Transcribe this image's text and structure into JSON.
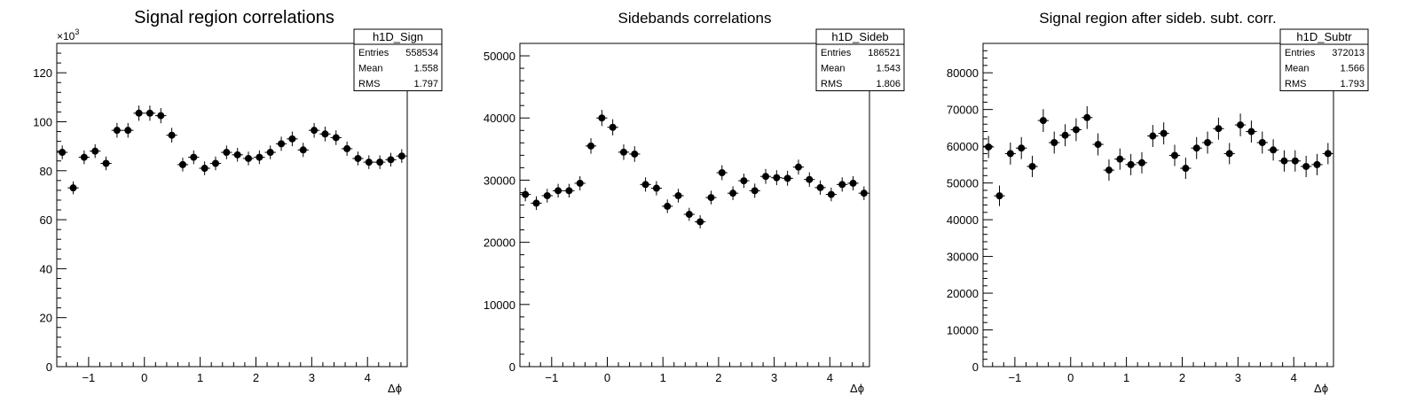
{
  "chart_data": [
    {
      "type": "scatter",
      "title": "Signal region correlations",
      "xlabel": "Δϕ",
      "ylabel": "",
      "xlim": [
        -1.5708,
        4.7124
      ],
      "ylim": [
        0,
        132
      ],
      "y_multiplier_label": "×10",
      "y_multiplier_exponent": "3",
      "x_ticks": [
        "−1",
        "0",
        "1",
        "2",
        "3",
        "4"
      ],
      "y_ticks": [
        "0",
        "20",
        "40",
        "60",
        "80",
        "100",
        "120"
      ],
      "stats_box": {
        "name": "h1D_Sign",
        "rows": [
          [
            "Entries",
            "558534"
          ],
          [
            "Mean",
            "1.558"
          ],
          [
            "RMS",
            "1.797"
          ]
        ]
      },
      "series": [
        {
          "values": [
            87.5,
            73,
            85.5,
            88,
            83,
            96.5,
            96.5,
            103.5,
            103.5,
            102.5,
            94.5,
            82.5,
            85.5,
            81,
            83,
            87.5,
            86.5,
            85,
            85.5,
            87.5,
            91,
            93,
            88.5,
            96.5,
            95,
            93.5,
            89,
            85,
            83.5,
            83.5,
            84.5,
            86
          ],
          "errors": [
            2.8,
            2.6,
            2.8,
            2.8,
            2.8,
            3,
            3,
            3.1,
            3.1,
            3.1,
            3,
            2.8,
            2.8,
            2.8,
            2.8,
            2.8,
            2.8,
            2.8,
            2.8,
            2.8,
            2.9,
            3,
            2.9,
            3,
            3,
            3,
            2.9,
            2.8,
            2.8,
            2.8,
            2.8,
            2.8
          ]
        }
      ]
    },
    {
      "type": "scatter",
      "title": "Sidebands correlations",
      "xlabel": "Δϕ",
      "ylabel": "",
      "xlim": [
        -1.5708,
        4.7124
      ],
      "ylim": [
        0,
        52000
      ],
      "x_ticks": [
        "−1",
        "0",
        "1",
        "2",
        "3",
        "4"
      ],
      "y_ticks": [
        "0",
        "10000",
        "20000",
        "30000",
        "40000",
        "50000"
      ],
      "stats_box": {
        "name": "h1D_Sideb",
        "rows": [
          [
            "Entries",
            "186521"
          ],
          [
            "Mean",
            "1.543"
          ],
          [
            "RMS",
            "1.806"
          ]
        ]
      },
      "series": [
        {
          "values": [
            27700,
            26300,
            27500,
            28300,
            28300,
            29500,
            35500,
            40000,
            38500,
            34500,
            34200,
            29300,
            28700,
            25800,
            27500,
            24500,
            23300,
            27200,
            31200,
            27900,
            29900,
            28300,
            30600,
            30400,
            30300,
            32100,
            30100,
            28800,
            27700,
            29300,
            29500,
            27900
          ],
          "errors": [
            1100,
            1100,
            1100,
            1100,
            1100,
            1150,
            1250,
            1300,
            1300,
            1250,
            1250,
            1150,
            1150,
            1100,
            1100,
            1050,
            1050,
            1100,
            1200,
            1100,
            1150,
            1150,
            1200,
            1200,
            1200,
            1200,
            1150,
            1150,
            1100,
            1150,
            1150,
            1100
          ]
        }
      ]
    },
    {
      "type": "scatter",
      "title": "Signal region after sideb. subt. corr.",
      "xlabel": "Δϕ",
      "ylabel": "",
      "xlim": [
        -1.5708,
        4.7124
      ],
      "ylim": [
        0,
        88000
      ],
      "x_ticks": [
        "−1",
        "0",
        "1",
        "2",
        "3",
        "4"
      ],
      "y_ticks": [
        "0",
        "10000",
        "20000",
        "30000",
        "40000",
        "50000",
        "60000",
        "70000",
        "80000"
      ],
      "stats_box": {
        "name": "h1D_Subtr",
        "rows": [
          [
            "Entries",
            "372013"
          ],
          [
            "Mean",
            "1.566"
          ],
          [
            "RMS",
            "1.793"
          ]
        ]
      },
      "series": [
        {
          "values": [
            59800,
            46500,
            58000,
            59500,
            54500,
            67000,
            61000,
            63000,
            64500,
            67800,
            60500,
            53500,
            56500,
            55000,
            55500,
            62800,
            63500,
            57500,
            54000,
            59500,
            61000,
            64800,
            58000,
            65800,
            64000,
            61000,
            59000,
            56000,
            56000,
            54500,
            55000,
            58000
          ],
          "errors": [
            3000,
            2800,
            3000,
            3000,
            2900,
            3100,
            3000,
            3000,
            3100,
            3100,
            3000,
            2900,
            2900,
            2900,
            2900,
            3000,
            3000,
            2900,
            2900,
            3000,
            3000,
            3000,
            2900,
            3100,
            3000,
            3000,
            2900,
            2900,
            2900,
            2900,
            2900,
            2900
          ]
        }
      ]
    }
  ]
}
